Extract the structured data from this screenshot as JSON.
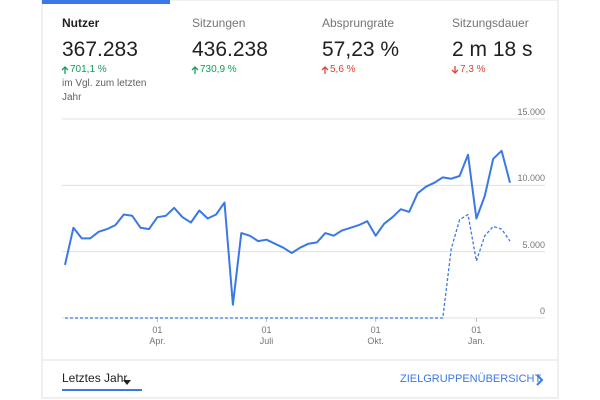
{
  "metrics": {
    "selected": 0,
    "items": [
      {
        "label": "Nutzer",
        "value": "367.283",
        "change": "701,1 %",
        "direction": "up",
        "note": "im Vgl. zum letzten Jahr"
      },
      {
        "label": "Sitzungen",
        "value": "436.238",
        "change": "730,9 %",
        "direction": "up"
      },
      {
        "label": "Absprungrate",
        "value": "57,23 %",
        "change": "5,6 %",
        "direction": "up",
        "bad": true
      },
      {
        "label": "Sitzungsdauer",
        "value": "2 m 18 s",
        "change": "7,3 %",
        "direction": "down",
        "bad": true
      }
    ]
  },
  "chart_data": {
    "type": "line",
    "categories": [
      null,
      null,
      null,
      null,
      null,
      null,
      null,
      null,
      null,
      null,
      null,
      "01\nApr.",
      null,
      null,
      null,
      null,
      null,
      null,
      null,
      null,
      null,
      null,
      null,
      null,
      "01\nJuli",
      null,
      null,
      null,
      null,
      null,
      null,
      null,
      null,
      null,
      null,
      null,
      null,
      "01\nOkt.",
      null,
      null,
      null,
      null,
      null,
      null,
      null,
      null,
      null,
      null,
      null,
      "01\nJan.",
      null,
      null,
      null,
      null
    ],
    "series": [
      {
        "color": "#3b78e7",
        "dashed": false,
        "values": [
          4000,
          6800,
          6000,
          6000,
          6500,
          6700,
          7000,
          7800,
          7700,
          6800,
          6700,
          7600,
          7700,
          8300,
          7600,
          7200,
          8100,
          7500,
          7800,
          8700,
          1000,
          6400,
          6200,
          5800,
          5900,
          5600,
          5300,
          4900,
          5300,
          5600,
          5700,
          6400,
          6200,
          6600,
          6800,
          7000,
          7300,
          6200,
          7100,
          7600,
          8200,
          8000,
          9400,
          9900,
          10200,
          10600,
          10500,
          10700,
          12300,
          7500,
          9200,
          12000,
          12600,
          10200
        ]
      },
      {
        "color": "#3b78e7",
        "dashed": true,
        "values": [
          0,
          0,
          0,
          0,
          0,
          0,
          0,
          0,
          0,
          0,
          0,
          0,
          0,
          0,
          0,
          0,
          0,
          0,
          0,
          0,
          0,
          0,
          0,
          0,
          0,
          0,
          0,
          0,
          0,
          0,
          0,
          0,
          0,
          0,
          0,
          0,
          0,
          0,
          0,
          0,
          0,
          0,
          0,
          0,
          0,
          0,
          5200,
          7400,
          7800,
          4300,
          6200,
          6900,
          6700,
          5800
        ]
      }
    ],
    "ylim": [
      0,
      15000
    ],
    "yticks": [
      0,
      {
        "value": 5000,
        "label": "5.000"
      },
      {
        "value": 10000,
        "label": "10.000"
      },
      {
        "value": 15000,
        "label": "15.000"
      }
    ],
    "grid": true
  },
  "footer": {
    "range": "Letztes Jahr",
    "link": "ZIELGRUPPENÜBERSICHT"
  }
}
